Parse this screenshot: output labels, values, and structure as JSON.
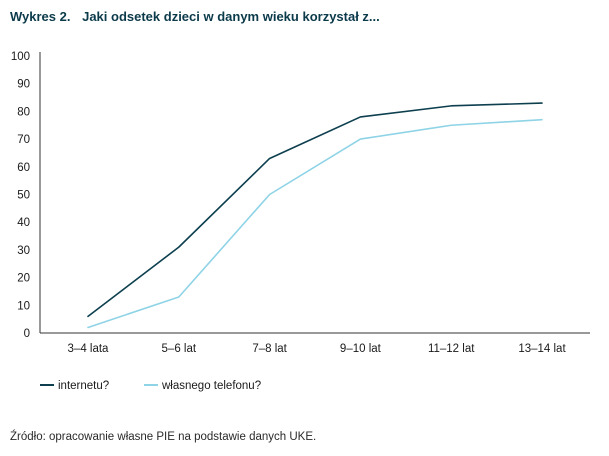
{
  "figure": {
    "number": "Wykres 2.",
    "title": "Jaki odsetek dzieci w danym wieku korzystał z..."
  },
  "source": "Źródło: opracowanie własne PIE na podstawie danych UKE.",
  "colors": {
    "series_1": "#0d3f4f",
    "series_2": "#8ed3e6",
    "axis": "#333333",
    "title": "#0b3a4a"
  },
  "chart_data": {
    "type": "line",
    "categories": [
      "3–4 lata",
      "5–6 lat",
      "7–8 lat",
      "9–10 lat",
      "11–12 lat",
      "13–14 lat"
    ],
    "series": [
      {
        "name": "internetu?",
        "values": [
          6,
          31,
          63,
          78,
          82,
          83
        ]
      },
      {
        "name": "własnego telefonu?",
        "values": [
          2,
          13,
          50,
          70,
          75,
          77
        ]
      }
    ],
    "title": "Jaki odsetek dzieci w danym wieku korzystał z...",
    "xlabel": "",
    "ylabel": "",
    "ylim": [
      0,
      100
    ],
    "yticks": [
      0,
      10,
      20,
      30,
      40,
      50,
      60,
      70,
      80,
      90,
      100
    ],
    "grid": false,
    "legend": "bottom-left"
  }
}
